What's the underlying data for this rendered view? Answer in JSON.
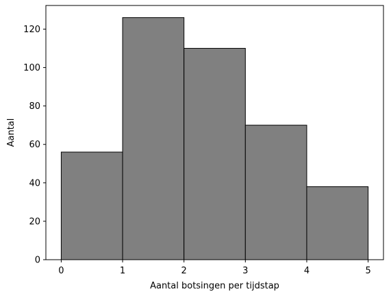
{
  "chart_data": {
    "type": "bar",
    "subtype": "histogram",
    "bins": [
      {
        "start": 0,
        "end": 1,
        "count": 56
      },
      {
        "start": 1,
        "end": 2,
        "count": 126
      },
      {
        "start": 2,
        "end": 3,
        "count": 110
      },
      {
        "start": 3,
        "end": 4,
        "count": 70
      },
      {
        "start": 4,
        "end": 5,
        "count": 38
      }
    ],
    "xlabel": "Aantal botsingen per tijdstap",
    "ylabel": "Aantal",
    "xlim": [
      -0.25,
      5.25
    ],
    "ylim": [
      0,
      132.3
    ],
    "xticks": [
      0,
      1,
      2,
      3,
      4,
      5
    ],
    "yticks": [
      0,
      20,
      40,
      60,
      80,
      100,
      120
    ],
    "bar_color": "#808080",
    "edge_color": "#000000",
    "grid": false
  }
}
